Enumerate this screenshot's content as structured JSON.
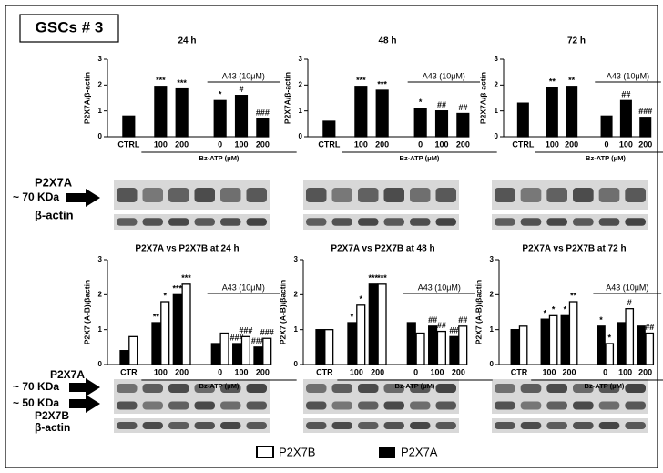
{
  "figure_label": "GSCs # 3",
  "blot_labels": {
    "top_band": "P2X7A",
    "top_size": "~ 70 KDa",
    "top_actin": "β-actin",
    "bottom_band_a": "P2X7A",
    "bottom_size_a": "~ 70 KDa",
    "bottom_size_b": "~ 50 KDa",
    "bottom_band_b": "P2X7B",
    "bottom_actin": "β-actin"
  },
  "chart_data": [
    {
      "type": "bar",
      "title": "24 h",
      "y_label": "P2X7A/β-actin",
      "color": "#000000",
      "categories": [
        "CTRL",
        "100",
        "200",
        "0",
        "100",
        "200"
      ],
      "group_labels": [
        "Bz-ATP (μM)",
        "A43 (10μM)"
      ],
      "values": [
        0.8,
        1.95,
        1.85,
        1.4,
        1.6,
        0.7
      ],
      "annotations": [
        null,
        "***",
        "***",
        "*",
        "#",
        "###"
      ],
      "ylim": [
        0,
        3
      ],
      "yticks": [
        0,
        1,
        2,
        3
      ]
    },
    {
      "type": "bar",
      "title": "48 h",
      "y_label": "P2X7A/β-actin",
      "color": "#000000",
      "categories": [
        "CTRL",
        "100",
        "200",
        "0",
        "100",
        "200"
      ],
      "group_labels": [
        "Bz-ATP (μM)",
        "A43 (10μM)"
      ],
      "values": [
        0.6,
        1.95,
        1.8,
        1.1,
        1.0,
        0.9
      ],
      "annotations": [
        null,
        "***",
        "***",
        "*",
        "##",
        "##"
      ],
      "ylim": [
        0,
        3
      ],
      "yticks": [
        0,
        1,
        2,
        3
      ]
    },
    {
      "type": "bar",
      "title": "72 h",
      "y_label": "P2X7A/β-actin",
      "color": "#000000",
      "categories": [
        "CTRL",
        "100",
        "200",
        "0",
        "100",
        "200"
      ],
      "group_labels": [
        "Bz-ATP (μM)",
        "A43 (10μM)"
      ],
      "values": [
        1.3,
        1.9,
        1.95,
        0.8,
        1.4,
        0.75
      ],
      "annotations": [
        null,
        "**",
        "**",
        null,
        "##",
        "###"
      ],
      "ylim": [
        0,
        3
      ],
      "yticks": [
        0,
        1,
        2,
        3
      ]
    },
    {
      "type": "grouped-bar",
      "title": "P2X7A vs P2X7B at 24 h",
      "y_label": "P2X7 (A-B)/βactin",
      "categories": [
        "CTR",
        "100",
        "200",
        "0",
        "100",
        "200"
      ],
      "group_labels": [
        "Bz-ATP (μM)",
        "A43 (10μM)"
      ],
      "series": [
        {
          "name": "P2X7A",
          "color": "#000000",
          "values": [
            0.4,
            1.2,
            2.0,
            0.6,
            0.6,
            0.5
          ],
          "annotations": [
            null,
            "**",
            "***",
            null,
            "###",
            "###"
          ]
        },
        {
          "name": "P2X7B",
          "color": "#ffffff",
          "values": [
            0.8,
            1.8,
            2.3,
            0.9,
            0.8,
            0.75
          ],
          "annotations": [
            null,
            "*",
            "***",
            null,
            "###",
            "###"
          ]
        }
      ],
      "ylim": [
        0,
        3
      ],
      "yticks": [
        0,
        1,
        2,
        3
      ]
    },
    {
      "type": "grouped-bar",
      "title": "P2X7A vs P2X7B at 48 h",
      "y_label": "P2X7 (A-B)/βactin",
      "categories": [
        "CTR",
        "100",
        "200",
        "0",
        "100",
        "200"
      ],
      "group_labels": [
        "Bz-ATP (μM)",
        "A43 (10μM)"
      ],
      "series": [
        {
          "name": "P2X7A",
          "color": "#000000",
          "values": [
            1.0,
            1.2,
            2.3,
            1.2,
            1.1,
            0.8
          ],
          "annotations": [
            null,
            "*",
            "***",
            null,
            "##",
            "##"
          ]
        },
        {
          "name": "P2X7B",
          "color": "#ffffff",
          "values": [
            1.0,
            1.7,
            2.3,
            0.9,
            0.95,
            1.1
          ],
          "annotations": [
            null,
            "*",
            "***",
            null,
            "##",
            "##"
          ]
        }
      ],
      "ylim": [
        0,
        3
      ],
      "yticks": [
        0,
        1,
        2,
        3
      ]
    },
    {
      "type": "grouped-bar",
      "title": "P2X7A vs P2X7B at 72 h",
      "y_label": "P2X7 (A-B)/βactin",
      "categories": [
        "CTR",
        "100",
        "200",
        "0",
        "100",
        "200"
      ],
      "group_labels": [
        "Bz-ATP (μM)",
        "A43 (10μM)"
      ],
      "series": [
        {
          "name": "P2X7A",
          "color": "#000000",
          "values": [
            1.0,
            1.3,
            1.4,
            1.1,
            1.2,
            1.1
          ],
          "annotations": [
            null,
            "*",
            "*",
            "*",
            null,
            null
          ]
        },
        {
          "name": "P2X7B",
          "color": "#ffffff",
          "values": [
            1.1,
            1.4,
            1.8,
            0.6,
            1.6,
            0.9
          ],
          "annotations": [
            null,
            "*",
            "**",
            "*",
            "#",
            "##"
          ]
        }
      ],
      "ylim": [
        0,
        3
      ],
      "yticks": [
        0,
        1,
        2,
        3
      ]
    }
  ]
}
